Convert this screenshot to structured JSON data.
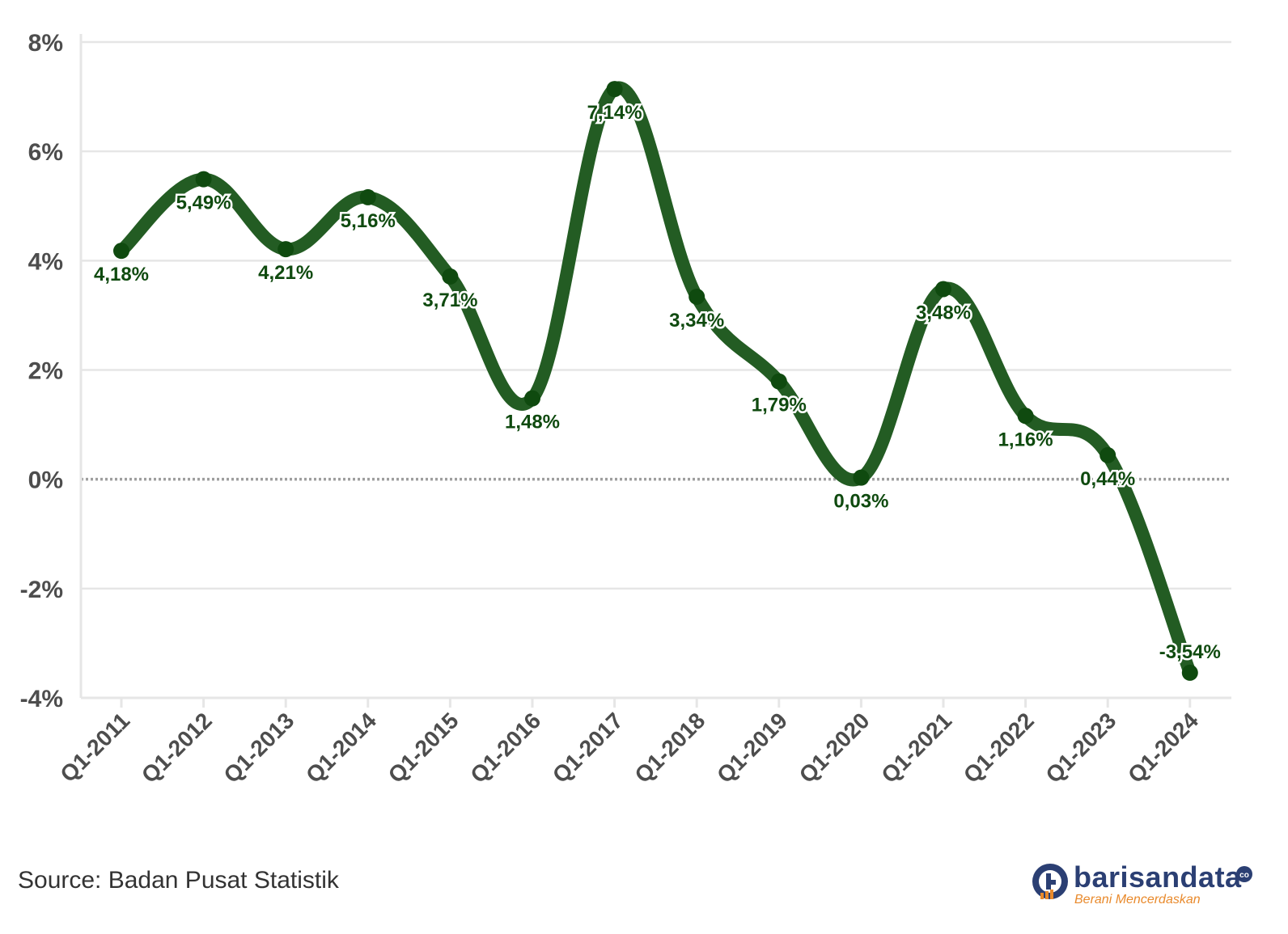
{
  "chart_data": {
    "type": "line",
    "title": "",
    "xlabel": "",
    "ylabel": "",
    "categories": [
      "Q1-2011",
      "Q1-2012",
      "Q1-2013",
      "Q1-2014",
      "Q1-2015",
      "Q1-2016",
      "Q1-2017",
      "Q1-2018",
      "Q1-2019",
      "Q1-2020",
      "Q1-2021",
      "Q1-2022",
      "Q1-2023",
      "Q1-2024"
    ],
    "values": [
      4.18,
      5.49,
      4.21,
      5.16,
      3.71,
      1.48,
      7.14,
      3.34,
      1.79,
      0.03,
      3.48,
      1.16,
      0.44,
      -3.54
    ],
    "data_labels": [
      "4,18%",
      "5,49%",
      "4,21%",
      "5,16%",
      "3,71%",
      "1,48%",
      "7,14%",
      "3,34%",
      "1,79%",
      "0,03%",
      "3,48%",
      "1,16%",
      "0,44%",
      "-3,54%"
    ],
    "ylim": [
      -4,
      8
    ],
    "y_ticks": [
      8,
      6,
      4,
      2,
      0,
      -2,
      -4
    ],
    "y_tick_labels": [
      "8%",
      "6%",
      "4%",
      "2%",
      "0%",
      "-2%",
      "-4%"
    ],
    "grid": true,
    "zero_line": "dotted",
    "line_color": "#235c23",
    "label_color": "#0f4a0f",
    "smooth": true
  },
  "footer": {
    "source": "Source: Badan Pusat Statistik"
  },
  "brand": {
    "name": "barisandata",
    "tagline": "Berani Mencerdaskan",
    "logo_icon": "barisandata-logo-icon",
    "primary_color": "#2b3f73",
    "accent_color": "#e98a2c"
  }
}
